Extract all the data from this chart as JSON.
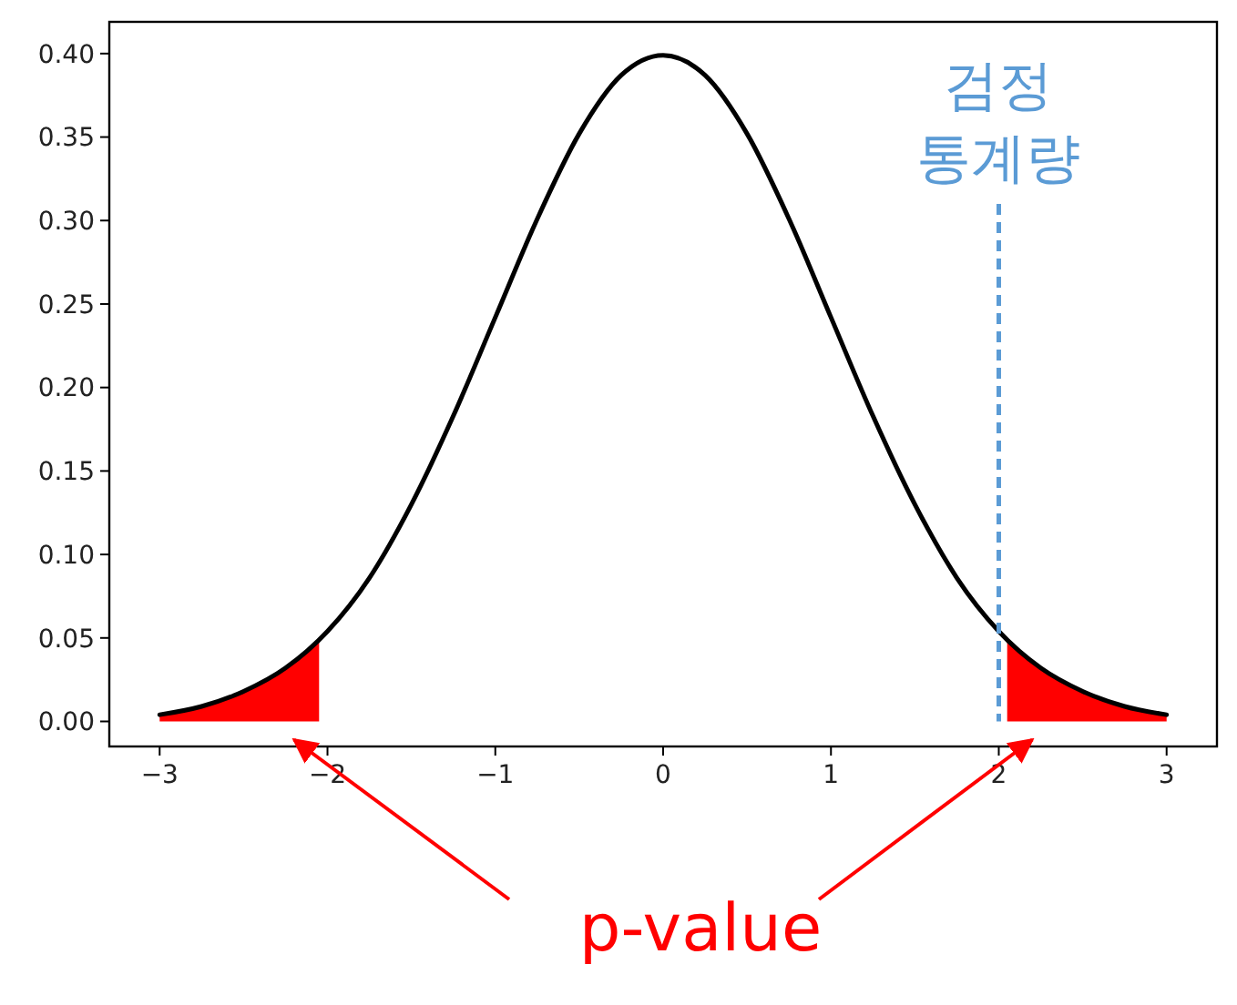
{
  "chart_data": {
    "type": "line",
    "xlim": [
      -3.3,
      3.3
    ],
    "ylim": [
      -0.015,
      0.419
    ],
    "xticks": [
      {
        "value": -3,
        "label": "−3"
      },
      {
        "value": -2,
        "label": "−2"
      },
      {
        "value": -1,
        "label": "−1"
      },
      0,
      1,
      2,
      3
    ],
    "yticks": [
      {
        "value": 0,
        "label": "0.00"
      },
      {
        "value": 0.05,
        "label": "0.05"
      },
      {
        "value": 0.1,
        "label": "0.10"
      },
      {
        "value": 0.15,
        "label": "0.15"
      },
      {
        "value": 0.2,
        "label": "0.20"
      },
      {
        "value": 0.25,
        "label": "0.25"
      },
      {
        "value": 0.3,
        "label": "0.30"
      },
      {
        "value": 0.35,
        "label": "0.35"
      },
      {
        "value": 0.4,
        "label": "0.40"
      }
    ],
    "series": [
      {
        "type": "area",
        "color": "#ff0000",
        "x": [
          -3,
          -2.75,
          -2.5,
          -2.25,
          -2.05
        ],
        "values": [
          0.004,
          0.009,
          0.018,
          0.032,
          0.049
        ]
      },
      {
        "type": "area",
        "color": "#ff0000",
        "x": [
          2.05,
          2.25,
          2.5,
          2.75,
          3
        ],
        "values": [
          0.049,
          0.032,
          0.018,
          0.009,
          0.004
        ]
      },
      {
        "color": "#000000",
        "x": [
          -3,
          -2.75,
          -2.5,
          -2.25,
          -2,
          -1.75,
          -1.5,
          -1.25,
          -1,
          -0.75,
          -0.5,
          -0.25,
          0,
          0.25,
          0.5,
          0.75,
          1,
          1.25,
          1.5,
          1.75,
          2,
          2.25,
          2.5,
          2.75,
          3
        ],
        "values": [
          0.004,
          0.009,
          0.018,
          0.032,
          0.054,
          0.086,
          0.13,
          0.183,
          0.242,
          0.301,
          0.352,
          0.387,
          0.399,
          0.387,
          0.352,
          0.301,
          0.242,
          0.183,
          0.13,
          0.086,
          0.054,
          0.032,
          0.018,
          0.009,
          0.004
        ]
      }
    ],
    "ref_lines": [
      {
        "axis": "x",
        "value": 2,
        "label": "검정 통계량",
        "color": "#5b9bd5",
        "line_style": "dashed"
      }
    ],
    "annotations": [
      "p-value"
    ],
    "grid": false
  }
}
